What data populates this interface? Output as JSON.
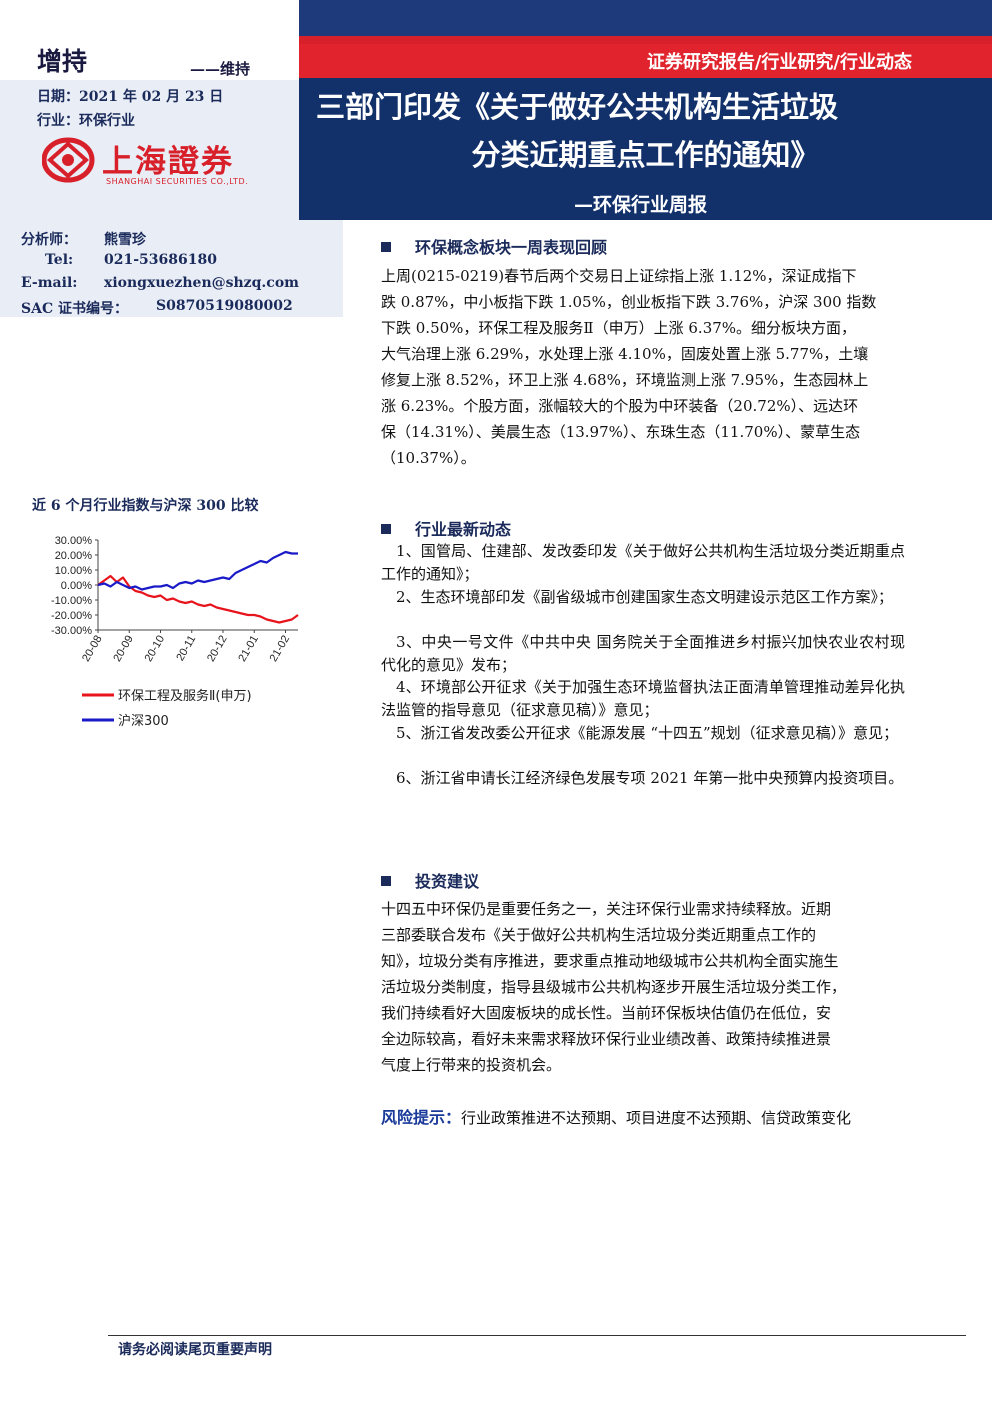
{
  "header": {
    "rating": "增持",
    "rating_change": "——维持",
    "date": "日期：2021 年 02 月 23 日",
    "industry": "行业：环保行业",
    "logo_name_cn": "上海證券",
    "logo_name_en": "SHANGHAI SECURITIES CO.,LTD.",
    "report_type": "证券研究报告/行业研究/行业动态",
    "title_line1": "三部门印发《关于做好公共机构生活垃圾",
    "title_line2": "分类近期重点工作的通知》",
    "subtitle": "—环保行业周报"
  },
  "analyst": {
    "name_label": "分析师：",
    "name": "熊雪珍",
    "tel_label": "Tel:",
    "tel": "021-53686180",
    "email_label": "E-mail:",
    "email": "xiongxuezhen@shzq.com",
    "sac_label": "SAC 证书编号：",
    "sac": "S0870519080002"
  },
  "chart_data": {
    "type": "line",
    "title": "近 6 个月行业指数与沪深 300 比较",
    "x_ticks": [
      "20-08",
      "20-09",
      "20-10",
      "20-11",
      "20-12",
      "21-01",
      "21-02"
    ],
    "y_ticks": [
      "30.00%",
      "20.00%",
      "10.00%",
      "0.00%",
      "-10.00%",
      "-20.00%",
      "-30.00%"
    ],
    "ylim": [
      -30,
      30
    ],
    "series": [
      {
        "name": "环保工程及服务Ⅱ(申万)",
        "color": "#e8141c",
        "x": [
          0,
          0.2,
          0.4,
          0.6,
          0.8,
          1.0,
          1.2,
          1.4,
          1.6,
          1.8,
          2.0,
          2.2,
          2.4,
          2.6,
          2.8,
          3.0,
          3.2,
          3.4,
          3.6,
          3.8,
          4.0,
          4.2,
          4.4,
          4.6,
          4.8,
          5.0,
          5.2,
          5.4,
          5.6,
          5.8,
          6.0,
          6.2,
          6.4
        ],
        "values": [
          0,
          3,
          6,
          2,
          5,
          -1,
          -4,
          -5,
          -7,
          -8,
          -7,
          -10,
          -9,
          -11,
          -12,
          -11,
          -13,
          -14,
          -13,
          -15,
          -16,
          -17,
          -18,
          -19,
          -20,
          -20,
          -21,
          -23,
          -24,
          -25,
          -24,
          -23,
          -20
        ]
      },
      {
        "name": "沪深300",
        "color": "#1a1ac8",
        "x": [
          0,
          0.2,
          0.4,
          0.6,
          0.8,
          1.0,
          1.2,
          1.4,
          1.6,
          1.8,
          2.0,
          2.2,
          2.4,
          2.6,
          2.8,
          3.0,
          3.2,
          3.4,
          3.6,
          3.8,
          4.0,
          4.2,
          4.4,
          4.6,
          4.8,
          5.0,
          5.2,
          5.4,
          5.6,
          5.8,
          6.0,
          6.2,
          6.4
        ],
        "values": [
          0,
          1,
          -1,
          2,
          0,
          -2,
          -1,
          -3,
          -2,
          -1,
          -1,
          0,
          -2,
          1,
          2,
          1,
          3,
          2,
          3,
          4,
          5,
          4,
          8,
          10,
          12,
          14,
          16,
          15,
          18,
          20,
          22,
          21,
          21
        ]
      }
    ],
    "legend": [
      "环保工程及服务Ⅱ(申万)",
      "沪深300"
    ],
    "legend_placement": "bottom"
  },
  "sections": {
    "review_title": "环保概念板块一周表现回顾",
    "review_lines": [
      "上周(0215-0219)春节后两个交易日上证综指上涨 1.12%，深证成指下",
      "跌 0.87%，中小板指下跌 1.05%，创业板指下跌 3.76%，沪深 300 指数",
      "下跌 0.50%，环保工程及服务Ⅱ（申万）上涨 6.37%。细分板块方面，",
      "大气治理上涨 6.29%，水处理上涨 4.10%，固废处置上涨 5.77%，土壤",
      "修复上涨 8.52%，环卫上涨 4.68%，环境监测上涨 7.95%，生态园林上",
      "涨 6.23%。个股方面，涨幅较大的个股为中环装备（20.72%）、远达环",
      "保（14.31%）、美晨生态（13.97%）、东珠生态（11.70%）、蒙草生态",
      "（10.37%）。"
    ],
    "news_title": "行业最新动态",
    "news_items": [
      "1、国管局、住建部、发改委印发《关于做好公共机构生活垃圾分类近期重点工作的通知》；",
      "2、生态环境部印发《副省级城市创建国家生态文明建设示范区工作方案》；",
      "3、中央一号文件《中共中央 国务院关于全面推进乡村振兴加快农业农村现代化的意见》发布；",
      "4、环境部公开征求《关于加强生态环境监督执法正面清单管理推动差异化执法监管的指导意见（征求意见稿）》意见；",
      "5、浙江省发改委公开征求《能源发展 “十四五”规划（征求意见稿）》意见；",
      "6、浙江省申请长江经济绿色发展专项 2021 年第一批中央预算内投资项目。"
    ],
    "invest_title": "投资建议",
    "invest_lines": [
      "十四五中环保仍是重要任务之一，关注环保行业需求持续释放。近期",
      "三部委联合发布《关于做好公共机构生活垃圾分类近期重点工作的",
      "知》，垃圾分类有序推进，要求重点推动地级城市公共机构全面实施生",
      "活垃圾分类制度，指导县级城市公共机构逐步开展生活垃圾分类工作，",
      "我们持续看好大固废板块的成长性。当前环保板块估值仍在低位，安",
      "全边际较高，看好未来需求释放环保行业业绩改善、政策持续推进景",
      "气度上行带来的投资机会。"
    ],
    "risk_label": "风险提示：",
    "risk_text": "行业政策推进不达预期、项目进度不达预期、信贷政策变化"
  },
  "footer": {
    "text": "请务必阅读尾页重要声明"
  }
}
